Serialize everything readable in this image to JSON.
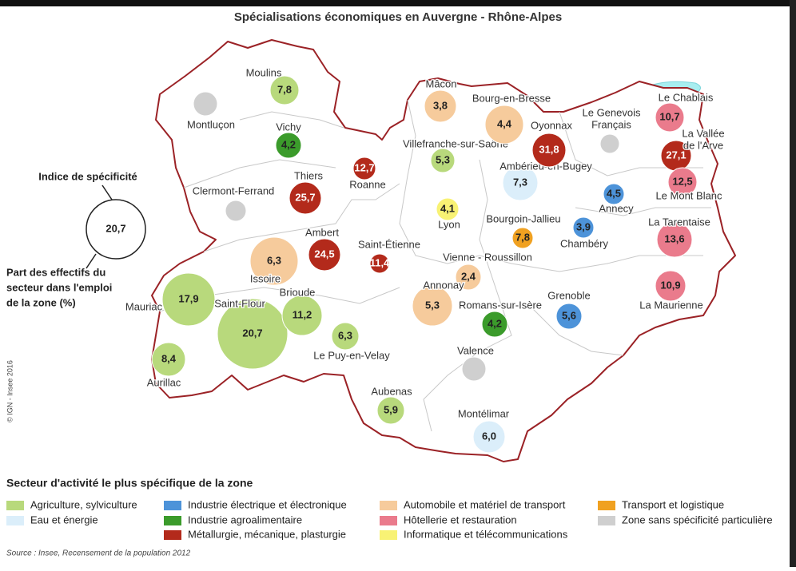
{
  "title": "Spécialisations économiques en Auvergne - Rhône-Alpes",
  "key": {
    "title": "Indice de spécificité",
    "example": "20,7",
    "caption_lines": [
      "Part des effectifs du",
      "secteur dans l'emploi",
      "de la zone (%)"
    ]
  },
  "legend_title": "Secteur d'activité le plus spécifique de la zone",
  "sectors": [
    {
      "name": "Agriculture, sylviculture",
      "color": "#b8d97c",
      "zones": [
        {
          "label_lines": [
            "Moulins"
          ],
          "index": "7,8"
        },
        {
          "label_lines": [
            "Villefranche-sur-Saône"
          ],
          "index": "5,3"
        },
        {
          "label_lines": [
            "Mauriac"
          ],
          "index": "17,9"
        },
        {
          "label_lines": [
            "Saint-Flour"
          ],
          "index": "20,7"
        },
        {
          "label_lines": [
            "Brioude"
          ],
          "index": "11,2"
        },
        {
          "label_lines": [
            "Le Puy-en-Velay"
          ],
          "index": "6,3"
        },
        {
          "label_lines": [
            "Aurillac"
          ],
          "index": "8,4"
        },
        {
          "label_lines": [
            "Aubenas"
          ],
          "index": "5,9"
        }
      ]
    },
    {
      "name": "Eau et énergie",
      "color": "#dbeefa",
      "zones": [
        {
          "label_lines": [
            "Ambérieu-en-Bugey"
          ],
          "index": "7,3"
        },
        {
          "label_lines": [
            "Montélimar"
          ],
          "index": "6,0"
        }
      ]
    },
    {
      "name": "Industrie électrique et électronique",
      "color": "#4d93d9",
      "zones": [
        {
          "label_lines": [
            "Annecy"
          ],
          "index": "4,5"
        },
        {
          "label_lines": [
            "Chambéry"
          ],
          "index": "3,9"
        },
        {
          "label_lines": [
            "Grenoble"
          ],
          "index": "5,6"
        }
      ]
    },
    {
      "name": "Industrie agroalimentaire",
      "color": "#3b9b2b",
      "zones": [
        {
          "label_lines": [
            "Vichy"
          ],
          "index": "4,2"
        },
        {
          "label_lines": [
            "Romans-sur-Isère"
          ],
          "index": "4,2"
        }
      ]
    },
    {
      "name": "Métallurgie, mécanique, plasturgie",
      "color": "#b32a1b",
      "zones": [
        {
          "label_lines": [
            "Thiers"
          ],
          "index": "25,7"
        },
        {
          "label_lines": [
            "Roanne"
          ],
          "index": "12,7"
        },
        {
          "label_lines": [
            "Ambert"
          ],
          "index": "24,5"
        },
        {
          "label_lines": [
            "Saint-Étienne"
          ],
          "index": "11,4"
        },
        {
          "label_lines": [
            "Oyonnax"
          ],
          "index": "31,8"
        },
        {
          "label_lines": [
            "La Vallée",
            "de l'Arve"
          ],
          "index": "27,1"
        }
      ]
    },
    {
      "name": "Automobile et matériel de transport",
      "color": "#f6cb9c",
      "zones": [
        {
          "label_lines": [
            "Mâcon"
          ],
          "index": "3,8"
        },
        {
          "label_lines": [
            "Bourg-en-Bresse"
          ],
          "index": "4,4"
        },
        {
          "label_lines": [
            "Issoire"
          ],
          "index": "6,3"
        },
        {
          "label_lines": [
            "Vienne - Roussillon"
          ],
          "index": "2,4"
        },
        {
          "label_lines": [
            "Annonay"
          ],
          "index": "5,3"
        }
      ]
    },
    {
      "name": "Hôtellerie et restauration",
      "color": "#ea7b8c",
      "zones": [
        {
          "label_lines": [
            "Le Chablais"
          ],
          "index": "10,7"
        },
        {
          "label_lines": [
            "Le Mont Blanc"
          ],
          "index": "12,5"
        },
        {
          "label_lines": [
            "La Tarentaise"
          ],
          "index": "13,6"
        },
        {
          "label_lines": [
            "La Maurienne"
          ],
          "index": "10,9"
        }
      ]
    },
    {
      "name": "Informatique et télécommunications",
      "color": "#f8f274",
      "zones": [
        {
          "label_lines": [
            "Lyon"
          ],
          "index": "4,1"
        }
      ]
    },
    {
      "name": "Transport et logistique",
      "color": "#f0a121",
      "zones": [
        {
          "label_lines": [
            "Bourgoin-Jallieu"
          ],
          "index": "7,8"
        }
      ]
    },
    {
      "name": "Zone sans spécificité particulière",
      "color": "#cfcfcf",
      "zones": [
        {
          "label_lines": [
            "Montluçon"
          ]
        },
        {
          "label_lines": [
            "Clermont-Ferrand"
          ]
        },
        {
          "label_lines": [
            "Le Genevois",
            "Français"
          ]
        },
        {
          "label_lines": [
            "Valence"
          ]
        }
      ]
    }
  ],
  "credit": "© IGN - Insee 2016",
  "source": "Source : Insee, Recensement de la population 2012"
}
